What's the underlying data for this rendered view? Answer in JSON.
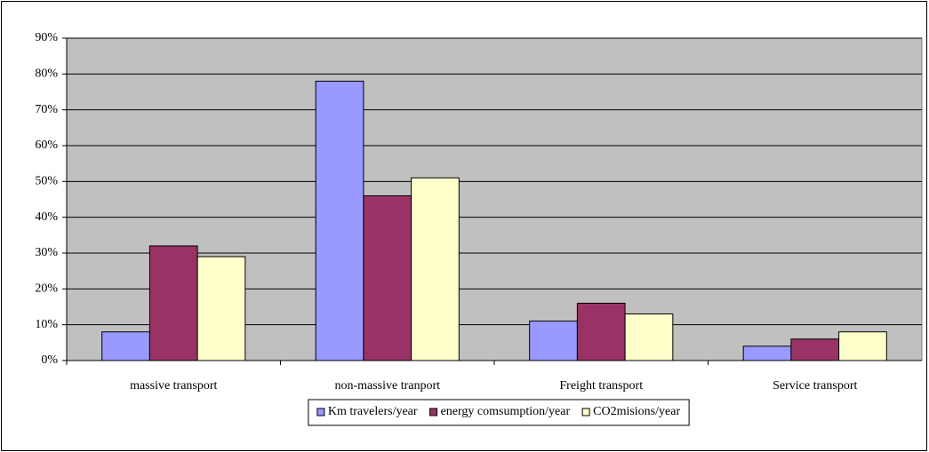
{
  "chart_data": {
    "type": "bar",
    "categories": [
      "massive transport",
      "non-massive tranport",
      "Freight transport",
      "Service transport"
    ],
    "series": [
      {
        "name": "Km travelers/year",
        "color": "#9999ff",
        "values": [
          8,
          78,
          11,
          4
        ]
      },
      {
        "name": "energy comsumption/year",
        "color": "#993366",
        "values": [
          32,
          46,
          16,
          6
        ]
      },
      {
        "name": "CO2misions/year",
        "color": "#ffffcc",
        "values": [
          29,
          51,
          13,
          8
        ]
      }
    ],
    "ylim": [
      0,
      90
    ],
    "yticks": [
      {
        "value": 0,
        "label": "0%"
      },
      {
        "value": 10,
        "label": "10%"
      },
      {
        "value": 20,
        "label": "20%"
      },
      {
        "value": 30,
        "label": "30%"
      },
      {
        "value": 40,
        "label": "40%"
      },
      {
        "value": 50,
        "label": "50%"
      },
      {
        "value": 60,
        "label": "60%"
      },
      {
        "value": 70,
        "label": "70%"
      },
      {
        "value": 80,
        "label": "80%"
      },
      {
        "value": 90,
        "label": "90%"
      }
    ],
    "grid": true,
    "legend": "bottom",
    "plot_background": "#c0c0c0"
  }
}
